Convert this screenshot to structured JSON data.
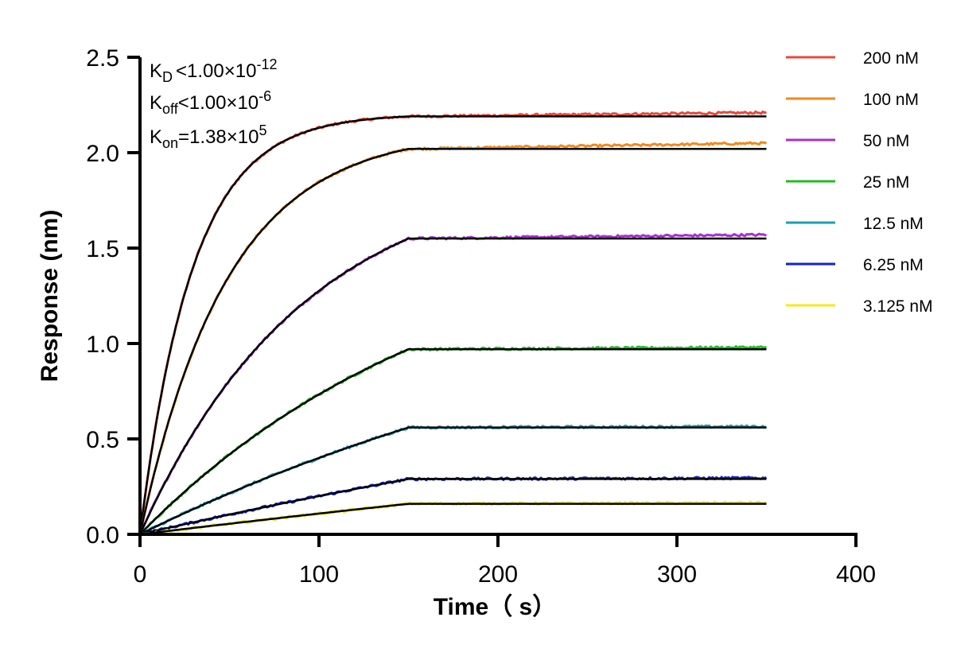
{
  "chart_data": {
    "type": "line",
    "xlabel": "Time（ s）",
    "ylabel": "Response (nm)",
    "xlim": [
      0,
      400
    ],
    "ylim": [
      0,
      2.5
    ],
    "x_ticks": [
      "0",
      "100",
      "200",
      "300",
      "400"
    ],
    "y_ticks": [
      "0.0",
      "0.5",
      "1.0",
      "1.5",
      "2.0",
      "2.5"
    ],
    "legend_position": "top-right",
    "grid": false,
    "association_end": 150,
    "run_end": 350,
    "fit_color": "#000000",
    "series": [
      {
        "name": "200 nM",
        "color": "#e8483c",
        "plateau": 2.19,
        "rate": 0.034,
        "end_value": 2.21
      },
      {
        "name": "100 nM",
        "color": "#f08a1c",
        "plateau": 2.02,
        "rate": 0.0205,
        "end_value": 2.05
      },
      {
        "name": "50 nM",
        "color": "#a82fd0",
        "plateau": 1.55,
        "rate": 0.0108,
        "end_value": 1.57
      },
      {
        "name": "25 nM",
        "color": "#1fbd1f",
        "plateau": 0.97,
        "rate": 0.0057,
        "end_value": 0.98
      },
      {
        "name": "12.5 nM",
        "color": "#1aa0b5",
        "plateau": 0.56,
        "rate": 0.003,
        "end_value": 0.565
      },
      {
        "name": "6.25 nM",
        "color": "#1020d8",
        "plateau": 0.29,
        "rate": 0.0015,
        "end_value": 0.295
      },
      {
        "name": "3.125 nM",
        "color": "#f2ea1a",
        "plateau": 0.16,
        "rate": 0.0008,
        "end_value": 0.165
      }
    ],
    "annotations": {
      "kd": {
        "main": "K",
        "sub": "D",
        "rel": "<",
        "mantissa": "1.00×10",
        "exp": "-12"
      },
      "koff": {
        "main": "K",
        "sub": "off",
        "rel": "<",
        "mantissa": "1.00×10",
        "exp": "-6"
      },
      "kon": {
        "main": "K",
        "sub": "on",
        "rel": "=",
        "mantissa": "1.38×10",
        "exp": "5"
      }
    }
  }
}
